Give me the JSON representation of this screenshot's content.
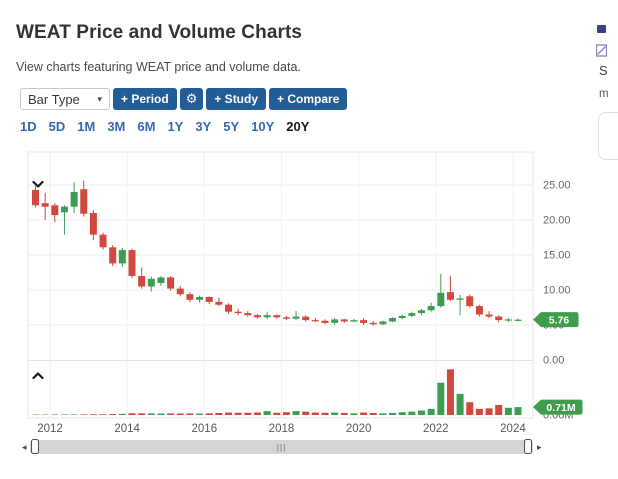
{
  "header": {
    "title": "WEAT Price and Volume Charts",
    "subtitle": "View charts featuring WEAT price and volume data."
  },
  "toolbar": {
    "bar_type": {
      "label": "Bar Type",
      "caret": "▾"
    },
    "button_color": "#235d97",
    "buttons": [
      {
        "id": "period",
        "label": "+ Period"
      },
      {
        "id": "settings",
        "label": "⚙"
      },
      {
        "id": "study",
        "label": "+ Study"
      },
      {
        "id": "compare",
        "label": "+ Compare"
      }
    ]
  },
  "ranges": {
    "items": [
      "1D",
      "5D",
      "1M",
      "3M",
      "6M",
      "1Y",
      "3Y",
      "5Y",
      "10Y",
      "20Y"
    ],
    "selected": "20Y",
    "link_color": "#3569b4"
  },
  "chart_data": {
    "type": "candlestick_with_volume",
    "symbol": "WEAT",
    "title": "",
    "grid": true,
    "price_axis": {
      "side": "right",
      "ticks": [
        25,
        20,
        15,
        10,
        5,
        0
      ],
      "tick_labels": [
        "25.00",
        "20.00",
        "15.00",
        "10.00",
        "5.00",
        "0.00"
      ],
      "ylim": [
        0,
        27.5
      ],
      "last_price_label": "5.76"
    },
    "volume_axis": {
      "side": "right",
      "tick_labels": [
        "0.00M"
      ],
      "ylim_millions": [
        0,
        4.4
      ],
      "last_volume_label": "0.71M"
    },
    "x_tick_labels": [
      "2012",
      "2014",
      "2016",
      "2018",
      "2020",
      "2022",
      "2024"
    ],
    "x_tick_years": [
      2012,
      2014,
      2016,
      2018,
      2020,
      2022,
      2024
    ],
    "candles_format": [
      "quarter",
      "open",
      "high",
      "low",
      "close",
      "volume_millions"
    ],
    "candles": [
      [
        "2011Q3",
        24.3,
        24.8,
        21.8,
        22.1,
        0.03
      ],
      [
        "2011Q4",
        22.4,
        23.9,
        20.0,
        21.9,
        0.03
      ],
      [
        "2012Q1",
        22.1,
        22.4,
        19.7,
        20.7,
        0.04
      ],
      [
        "2012Q2",
        21.1,
        22.1,
        17.9,
        21.9,
        0.05
      ],
      [
        "2012Q3",
        21.9,
        25.4,
        21.0,
        24.0,
        0.05
      ],
      [
        "2012Q4",
        24.4,
        25.6,
        20.5,
        20.9,
        0.05
      ],
      [
        "2013Q1",
        21.0,
        21.4,
        17.1,
        17.9,
        0.06
      ],
      [
        "2013Q2",
        17.9,
        18.2,
        15.8,
        16.1,
        0.06
      ],
      [
        "2013Q3",
        16.1,
        16.4,
        13.4,
        13.8,
        0.08
      ],
      [
        "2013Q4",
        13.8,
        16.0,
        13.3,
        15.7,
        0.1
      ],
      [
        "2014Q1",
        15.7,
        15.9,
        11.7,
        12.0,
        0.16
      ],
      [
        "2014Q2",
        12.0,
        13.2,
        10.2,
        10.5,
        0.15
      ],
      [
        "2014Q3",
        10.5,
        11.9,
        9.8,
        11.6,
        0.14
      ],
      [
        "2014Q4",
        11.0,
        12.0,
        10.6,
        11.8,
        0.13
      ],
      [
        "2015Q1",
        11.8,
        12.0,
        9.9,
        10.2,
        0.14
      ],
      [
        "2015Q2",
        10.2,
        10.6,
        9.1,
        9.4,
        0.13
      ],
      [
        "2015Q3",
        9.4,
        9.7,
        8.3,
        8.6,
        0.14
      ],
      [
        "2015Q4",
        8.6,
        9.2,
        8.2,
        9.0,
        0.12
      ],
      [
        "2016Q1",
        9.0,
        9.1,
        8.0,
        8.3,
        0.15
      ],
      [
        "2016Q2",
        8.3,
        8.9,
        7.7,
        7.9,
        0.18
      ],
      [
        "2016Q3",
        7.9,
        8.1,
        6.6,
        6.9,
        0.22
      ],
      [
        "2016Q4",
        6.9,
        7.3,
        6.4,
        6.7,
        0.2
      ],
      [
        "2017Q1",
        6.7,
        7.0,
        6.2,
        6.4,
        0.2
      ],
      [
        "2017Q2",
        6.4,
        6.6,
        5.9,
        6.1,
        0.22
      ],
      [
        "2017Q3",
        6.1,
        6.9,
        5.8,
        6.4,
        0.35
      ],
      [
        "2017Q4",
        6.4,
        6.5,
        5.9,
        6.1,
        0.2
      ],
      [
        "2018Q1",
        6.1,
        6.3,
        5.7,
        5.9,
        0.25
      ],
      [
        "2018Q2",
        5.9,
        7.0,
        5.7,
        6.2,
        0.35
      ],
      [
        "2018Q3",
        6.2,
        6.4,
        5.5,
        5.7,
        0.3
      ],
      [
        "2018Q4",
        5.7,
        6.0,
        5.4,
        5.6,
        0.22
      ],
      [
        "2019Q1",
        5.6,
        5.8,
        5.1,
        5.3,
        0.2
      ],
      [
        "2019Q2",
        5.3,
        6.0,
        5.0,
        5.8,
        0.22
      ],
      [
        "2019Q3",
        5.8,
        5.9,
        5.3,
        5.5,
        0.18
      ],
      [
        "2019Q4",
        5.5,
        5.9,
        5.4,
        5.7,
        0.15
      ],
      [
        "2020Q1",
        5.7,
        6.0,
        5.0,
        5.3,
        0.22
      ],
      [
        "2020Q2",
        5.3,
        5.6,
        4.9,
        5.1,
        0.18
      ],
      [
        "2020Q3",
        5.1,
        5.6,
        5.0,
        5.5,
        0.15
      ],
      [
        "2020Q4",
        5.5,
        6.1,
        5.4,
        6.0,
        0.18
      ],
      [
        "2021Q1",
        6.0,
        6.5,
        5.8,
        6.3,
        0.25
      ],
      [
        "2021Q2",
        6.3,
        6.9,
        6.1,
        6.7,
        0.3
      ],
      [
        "2021Q3",
        6.7,
        7.3,
        6.4,
        7.1,
        0.4
      ],
      [
        "2021Q4",
        7.1,
        8.2,
        6.9,
        7.7,
        0.55
      ],
      [
        "2022Q1",
        7.7,
        12.3,
        7.5,
        9.6,
        2.9
      ],
      [
        "2022Q2",
        9.7,
        12.0,
        8.4,
        8.6,
        4.1
      ],
      [
        "2022Q3",
        8.6,
        9.3,
        6.4,
        8.8,
        1.9
      ],
      [
        "2022Q4",
        9.1,
        9.4,
        7.5,
        7.7,
        1.15
      ],
      [
        "2023Q1",
        7.7,
        7.9,
        6.2,
        6.5,
        0.55
      ],
      [
        "2023Q2",
        6.5,
        7.0,
        6.0,
        6.2,
        0.6
      ],
      [
        "2023Q3",
        6.2,
        6.4,
        5.4,
        5.7,
        0.9
      ],
      [
        "2023Q4",
        5.7,
        6.0,
        5.4,
        5.8,
        0.65
      ],
      [
        "2024Q1",
        5.7,
        5.95,
        5.5,
        5.76,
        0.71
      ]
    ],
    "colors": {
      "up": "#3d9e51",
      "down": "#d1483f",
      "tag_bg": "#3f9e4d",
      "grid": "#ededed",
      "axis_text": "#65686c"
    }
  },
  "panels": {
    "price_collapse_glyph": "v",
    "volume_expand_glyph": "^"
  },
  "scrollbar": {
    "grip": "|||",
    "left_arrow": "◂",
    "right_arrow": "▸"
  },
  "side_rail": {
    "fragments": [
      "S",
      "m"
    ]
  }
}
